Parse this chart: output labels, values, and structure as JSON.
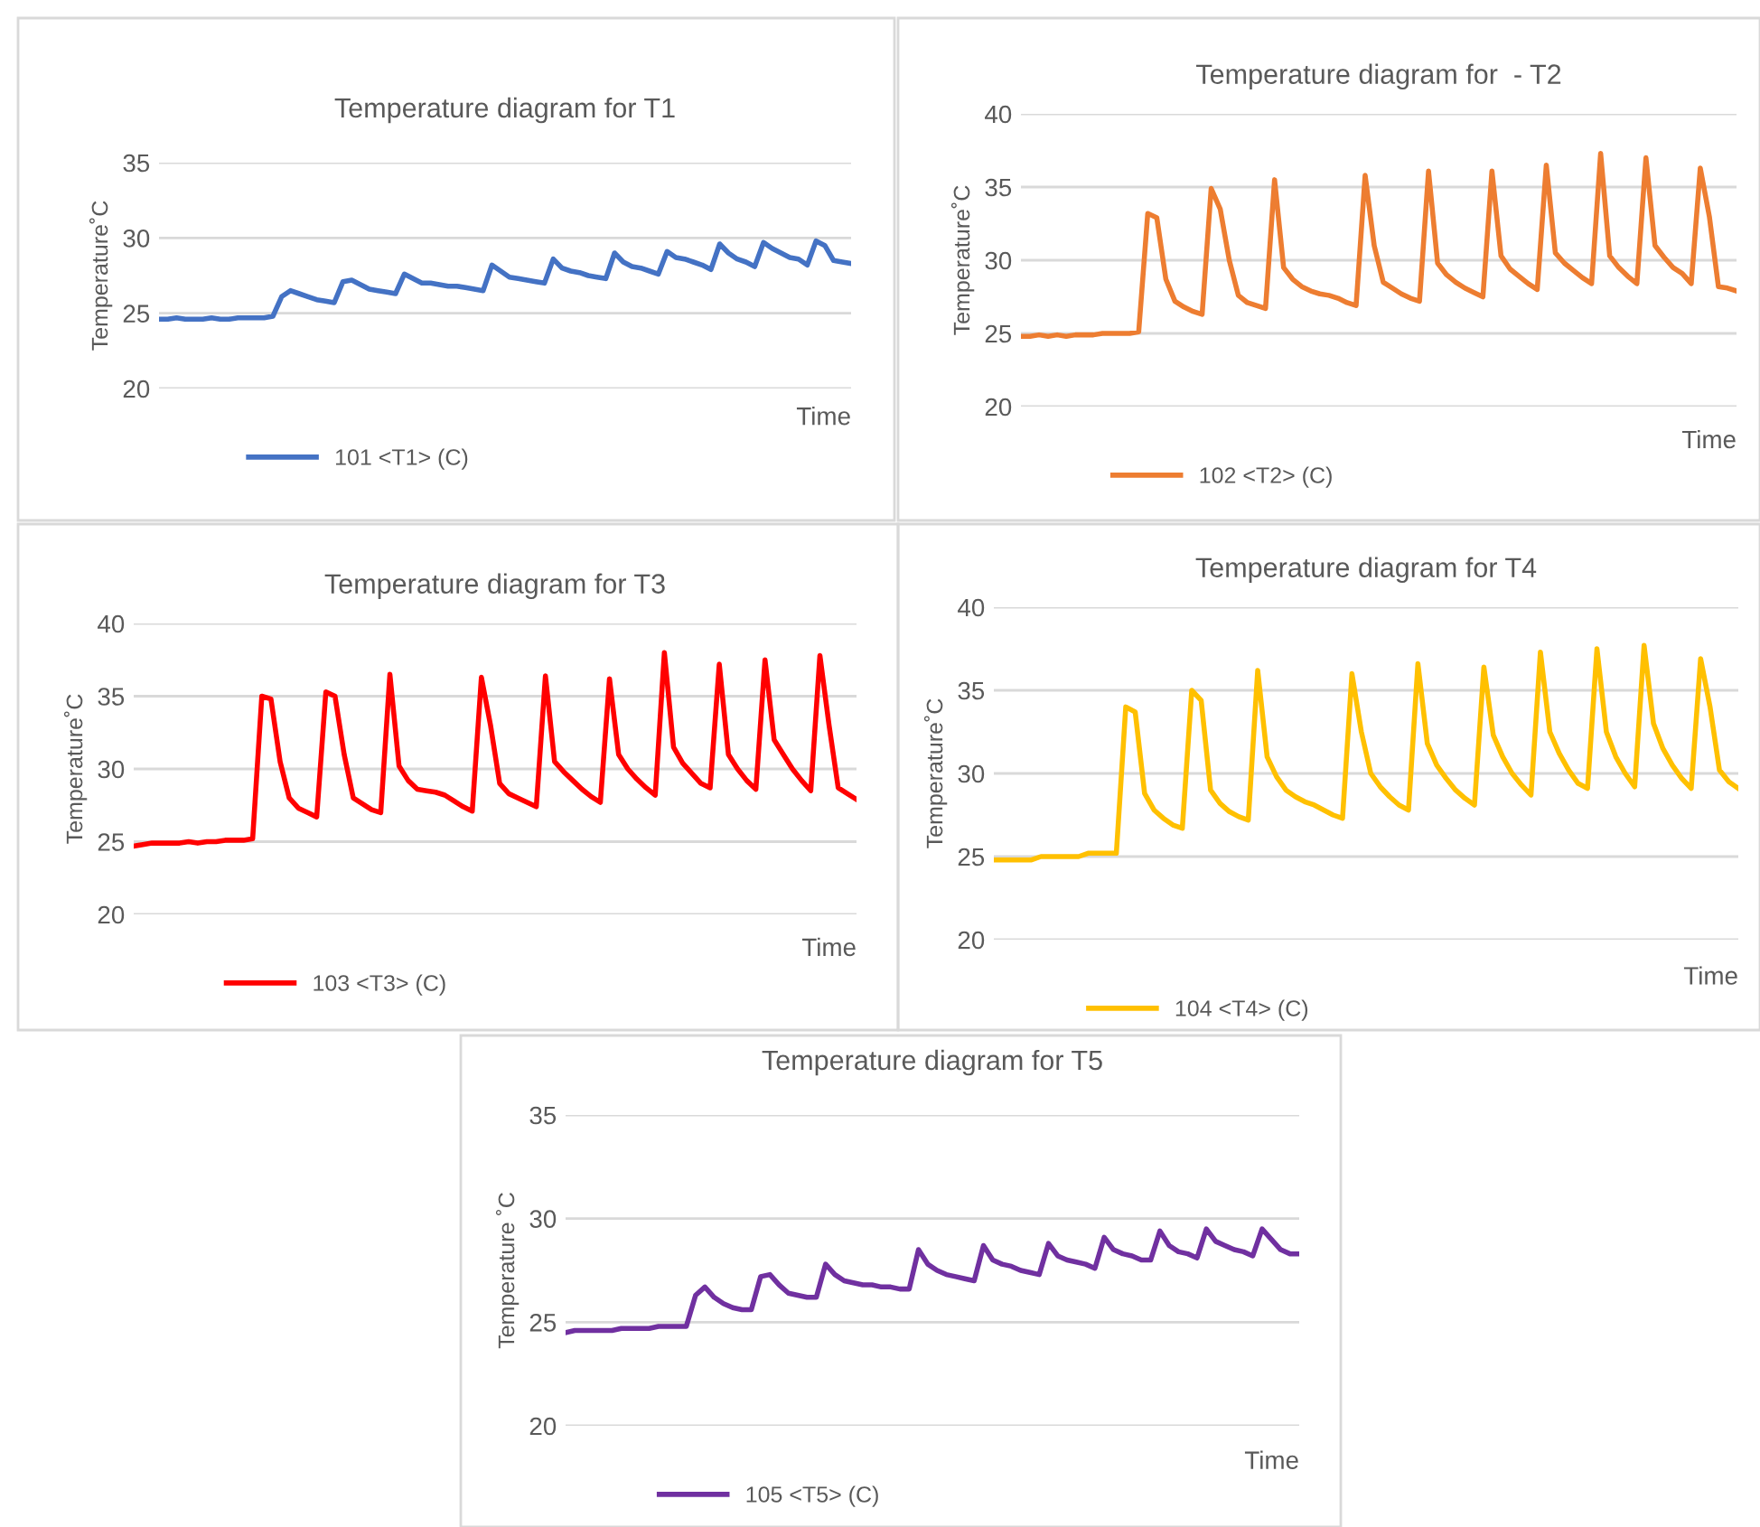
{
  "chart_data": [
    {
      "type": "line",
      "title": "Temperature diagram for T1",
      "xlabel": "Time",
      "ylabel": "Temperature˚C",
      "ylim": [
        20,
        35
      ],
      "yticks": [
        20,
        25,
        30,
        35
      ],
      "grid": "y",
      "legend": "bottom",
      "marker": "none",
      "line_style": "solid",
      "tick_labels": "y",
      "categories": [
        null,
        null,
        null,
        null,
        null,
        null,
        null,
        null,
        null,
        null,
        null,
        null,
        null,
        null,
        null,
        null,
        null,
        null,
        null,
        null,
        null,
        null,
        null,
        null,
        null,
        null,
        null,
        null,
        null,
        null,
        null,
        null,
        null,
        null,
        null,
        null,
        null,
        null,
        null,
        null,
        null,
        null,
        null,
        null,
        null,
        null,
        null,
        null,
        null,
        null,
        null,
        null,
        null,
        null,
        null,
        null,
        null,
        null,
        null,
        null,
        null,
        null,
        null,
        null,
        null,
        null,
        null,
        null,
        null,
        null,
        null,
        null,
        null,
        null,
        null,
        null,
        null,
        null,
        null,
        null
      ],
      "series": [
        {
          "name": "101 <T1> (C)",
          "color": "#4472c4",
          "values": [
            24.6,
            24.6,
            24.7,
            24.6,
            24.6,
            24.6,
            24.7,
            24.6,
            24.6,
            24.7,
            24.7,
            24.7,
            24.7,
            24.8,
            26.1,
            26.5,
            26.3,
            26.1,
            25.9,
            25.8,
            25.7,
            27.1,
            27.2,
            26.9,
            26.6,
            26.5,
            26.4,
            26.3,
            27.6,
            27.3,
            27.0,
            27.0,
            26.9,
            26.8,
            26.8,
            26.7,
            26.6,
            26.5,
            28.2,
            27.8,
            27.4,
            27.3,
            27.2,
            27.1,
            27.0,
            28.6,
            28.0,
            27.8,
            27.7,
            27.5,
            27.4,
            27.3,
            29.0,
            28.4,
            28.1,
            28.0,
            27.8,
            27.6,
            29.1,
            28.7,
            28.6,
            28.4,
            28.2,
            27.9,
            29.6,
            29.0,
            28.6,
            28.4,
            28.1,
            29.7,
            29.3,
            29.0,
            28.7,
            28.6,
            28.2,
            29.8,
            29.5,
            28.5,
            28.4,
            28.3
          ]
        }
      ]
    },
    {
      "type": "line",
      "title": "Temperature diagram for  - T2",
      "xlabel": "Time",
      "ylabel": "Temperature˚C",
      "ylim": [
        20,
        40
      ],
      "yticks": [
        20,
        25,
        30,
        35,
        40
      ],
      "grid": "y",
      "legend": "bottom",
      "marker": "none",
      "line_style": "solid",
      "tick_labels": "y",
      "categories": [
        null,
        null,
        null,
        null,
        null,
        null,
        null,
        null,
        null,
        null,
        null,
        null,
        null,
        null,
        null,
        null,
        null,
        null,
        null,
        null,
        null,
        null,
        null,
        null,
        null,
        null,
        null,
        null,
        null,
        null,
        null,
        null,
        null,
        null,
        null,
        null,
        null,
        null,
        null,
        null,
        null,
        null,
        null,
        null,
        null,
        null,
        null,
        null,
        null,
        null,
        null,
        null,
        null,
        null,
        null,
        null,
        null,
        null,
        null,
        null,
        null,
        null,
        null,
        null,
        null,
        null,
        null,
        null,
        null,
        null,
        null,
        null,
        null,
        null,
        null,
        null,
        null,
        null,
        null,
        null
      ],
      "series": [
        {
          "name": "102 <T2> (C)",
          "color": "#ed7d31",
          "values": [
            24.8,
            24.8,
            24.9,
            24.8,
            24.9,
            24.8,
            24.9,
            24.9,
            24.9,
            25.0,
            25.0,
            25.0,
            25.0,
            25.1,
            33.2,
            32.9,
            28.7,
            27.2,
            26.8,
            26.5,
            26.3,
            34.9,
            33.5,
            30.0,
            27.6,
            27.1,
            26.9,
            26.7,
            35.5,
            29.5,
            28.7,
            28.2,
            27.9,
            27.7,
            27.6,
            27.4,
            27.1,
            26.9,
            35.8,
            31.0,
            28.5,
            28.1,
            27.7,
            27.4,
            27.2,
            36.1,
            29.8,
            29.0,
            28.5,
            28.1,
            27.8,
            27.5,
            36.1,
            30.3,
            29.4,
            28.9,
            28.4,
            28.0,
            36.5,
            30.5,
            29.8,
            29.3,
            28.8,
            28.4,
            37.3,
            30.3,
            29.5,
            28.9,
            28.4,
            37.0,
            31.0,
            30.2,
            29.5,
            29.1,
            28.4,
            36.3,
            33.0,
            28.2,
            28.1,
            27.9
          ]
        }
      ]
    },
    {
      "type": "line",
      "title": "Temperature diagram for T3",
      "xlabel": "Time",
      "ylabel": "Temperature˚C",
      "ylim": [
        20,
        40
      ],
      "yticks": [
        20,
        25,
        30,
        35,
        40
      ],
      "grid": "y",
      "legend": "bottom",
      "marker": "none",
      "line_style": "solid",
      "tick_labels": "y",
      "categories": [
        null,
        null,
        null,
        null,
        null,
        null,
        null,
        null,
        null,
        null,
        null,
        null,
        null,
        null,
        null,
        null,
        null,
        null,
        null,
        null,
        null,
        null,
        null,
        null,
        null,
        null,
        null,
        null,
        null,
        null,
        null,
        null,
        null,
        null,
        null,
        null,
        null,
        null,
        null,
        null,
        null,
        null,
        null,
        null,
        null,
        null,
        null,
        null,
        null,
        null,
        null,
        null,
        null,
        null,
        null,
        null,
        null,
        null,
        null,
        null,
        null,
        null,
        null,
        null,
        null,
        null,
        null,
        null,
        null,
        null,
        null,
        null,
        null,
        null,
        null,
        null,
        null,
        null,
        null,
        null
      ],
      "series": [
        {
          "name": "103 <T3> (C)",
          "color": "#ff0000",
          "values": [
            24.7,
            24.8,
            24.9,
            24.9,
            24.9,
            24.9,
            25.0,
            24.9,
            25.0,
            25.0,
            25.1,
            25.1,
            25.1,
            25.2,
            35.0,
            34.8,
            30.5,
            28.0,
            27.3,
            27.0,
            26.7,
            35.3,
            35.0,
            31.0,
            28.0,
            27.6,
            27.2,
            27.0,
            36.5,
            30.2,
            29.2,
            28.6,
            28.5,
            28.4,
            28.2,
            27.8,
            27.4,
            27.1,
            36.3,
            33.0,
            29.0,
            28.3,
            28.0,
            27.7,
            27.4,
            36.4,
            30.5,
            29.8,
            29.2,
            28.6,
            28.1,
            27.7,
            36.2,
            31.0,
            30.0,
            29.3,
            28.7,
            28.2,
            38.0,
            31.5,
            30.4,
            29.7,
            29.0,
            28.7,
            37.2,
            31.0,
            30.0,
            29.2,
            28.6,
            37.5,
            32.0,
            31.0,
            30.0,
            29.2,
            28.5,
            37.8,
            33.0,
            28.7,
            28.3,
            27.9
          ]
        }
      ]
    },
    {
      "type": "line",
      "title": "Temperature diagram for T4",
      "xlabel": "Time",
      "ylabel": "Temperature˚C",
      "ylim": [
        20,
        40
      ],
      "yticks": [
        20,
        25,
        30,
        35,
        40
      ],
      "grid": "y",
      "legend": "bottom",
      "marker": "none",
      "line_style": "solid",
      "tick_labels": "y",
      "categories": [
        null,
        null,
        null,
        null,
        null,
        null,
        null,
        null,
        null,
        null,
        null,
        null,
        null,
        null,
        null,
        null,
        null,
        null,
        null,
        null,
        null,
        null,
        null,
        null,
        null,
        null,
        null,
        null,
        null,
        null,
        null,
        null,
        null,
        null,
        null,
        null,
        null,
        null,
        null,
        null,
        null,
        null,
        null,
        null,
        null,
        null,
        null,
        null,
        null,
        null,
        null,
        null,
        null,
        null,
        null,
        null,
        null,
        null,
        null,
        null,
        null,
        null,
        null,
        null,
        null,
        null,
        null,
        null,
        null,
        null,
        null,
        null,
        null,
        null,
        null,
        null,
        null,
        null,
        null,
        null
      ],
      "series": [
        {
          "name": "104 <T4> (C)",
          "color": "#ffc000",
          "values": [
            24.8,
            24.8,
            24.8,
            24.8,
            24.8,
            25.0,
            25.0,
            25.0,
            25.0,
            25.0,
            25.2,
            25.2,
            25.2,
            25.2,
            34.0,
            33.7,
            28.8,
            27.8,
            27.3,
            26.9,
            26.7,
            35.0,
            34.4,
            29.0,
            28.2,
            27.7,
            27.4,
            27.2,
            36.2,
            31.0,
            29.8,
            29.0,
            28.6,
            28.3,
            28.1,
            27.8,
            27.5,
            27.3,
            36.0,
            32.5,
            30.0,
            29.2,
            28.6,
            28.1,
            27.8,
            36.6,
            31.8,
            30.5,
            29.7,
            29.0,
            28.5,
            28.1,
            36.4,
            32.3,
            31.0,
            30.0,
            29.3,
            28.7,
            37.3,
            32.5,
            31.2,
            30.2,
            29.4,
            29.1,
            37.5,
            32.5,
            31.0,
            30.0,
            29.2,
            37.7,
            33.0,
            31.5,
            30.5,
            29.7,
            29.1,
            36.9,
            34.0,
            30.2,
            29.5,
            29.1
          ]
        }
      ]
    },
    {
      "type": "line",
      "title": "Temperature diagram for T5",
      "xlabel": "Time",
      "ylabel": "Temperature ˚C",
      "ylim": [
        20,
        35
      ],
      "yticks": [
        20,
        25,
        30,
        35
      ],
      "grid": "y",
      "legend": "bottom",
      "marker": "none",
      "line_style": "solid",
      "tick_labels": "y",
      "categories": [
        null,
        null,
        null,
        null,
        null,
        null,
        null,
        null,
        null,
        null,
        null,
        null,
        null,
        null,
        null,
        null,
        null,
        null,
        null,
        null,
        null,
        null,
        null,
        null,
        null,
        null,
        null,
        null,
        null,
        null,
        null,
        null,
        null,
        null,
        null,
        null,
        null,
        null,
        null,
        null,
        null,
        null,
        null,
        null,
        null,
        null,
        null,
        null,
        null,
        null,
        null,
        null,
        null,
        null,
        null,
        null,
        null,
        null,
        null,
        null,
        null,
        null,
        null,
        null,
        null,
        null,
        null,
        null,
        null,
        null,
        null,
        null,
        null,
        null,
        null,
        null,
        null,
        null,
        null,
        null
      ],
      "series": [
        {
          "name": "105 <T5> (C)",
          "color": "#7030a0",
          "values": [
            24.5,
            24.6,
            24.6,
            24.6,
            24.6,
            24.6,
            24.7,
            24.7,
            24.7,
            24.7,
            24.8,
            24.8,
            24.8,
            24.8,
            26.3,
            26.7,
            26.2,
            25.9,
            25.7,
            25.6,
            25.6,
            27.2,
            27.3,
            26.8,
            26.4,
            26.3,
            26.2,
            26.2,
            27.8,
            27.3,
            27.0,
            26.9,
            26.8,
            26.8,
            26.7,
            26.7,
            26.6,
            26.6,
            28.5,
            27.8,
            27.5,
            27.3,
            27.2,
            27.1,
            27.0,
            28.7,
            28.0,
            27.8,
            27.7,
            27.5,
            27.4,
            27.3,
            28.8,
            28.2,
            28.0,
            27.9,
            27.8,
            27.6,
            29.1,
            28.5,
            28.3,
            28.2,
            28.0,
            28.0,
            29.4,
            28.7,
            28.4,
            28.3,
            28.1,
            29.5,
            28.9,
            28.7,
            28.5,
            28.4,
            28.2,
            29.5,
            29.0,
            28.5,
            28.3,
            28.3
          ]
        }
      ]
    }
  ]
}
